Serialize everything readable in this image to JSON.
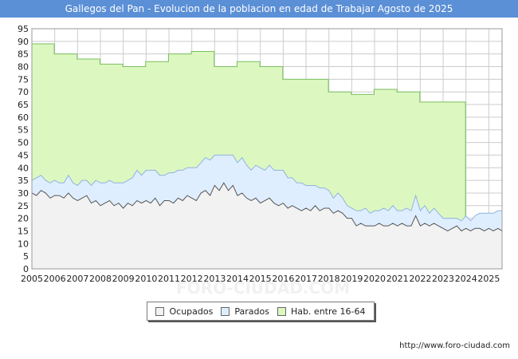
{
  "chart_data": {
    "type": "area",
    "title": "Gallegos del Pan - Evolucion de la poblacion en edad de Trabajar Agosto de 2025",
    "xlabel": "",
    "ylabel": "",
    "xlim": [
      2005,
      2025.58
    ],
    "ylim": [
      0,
      95
    ],
    "yticks": [
      0,
      5,
      10,
      15,
      20,
      25,
      30,
      35,
      40,
      45,
      50,
      55,
      60,
      65,
      70,
      75,
      80,
      85,
      90,
      95
    ],
    "xticks": [
      "2005",
      "2006",
      "2007",
      "2008",
      "2009",
      "2010",
      "2011",
      "2012",
      "2013",
      "2014",
      "2015",
      "2016",
      "2017",
      "2018",
      "2019",
      "2020",
      "2021",
      "2022",
      "2023",
      "2024",
      "2025"
    ],
    "grid": true,
    "legend_position": "bottom-center",
    "colors": {
      "ocupados": "#f2f2f2",
      "parados": "#dfeeff",
      "hab": "#ddf7c0",
      "line_ocupados": "#555555",
      "line_parados": "#8fb3e0",
      "line_hab": "#79bf60"
    },
    "hab_steps": [
      {
        "x": 2005.0,
        "y": 89
      },
      {
        "x": 2005.98,
        "y": 85
      },
      {
        "x": 2006.98,
        "y": 83
      },
      {
        "x": 2007.98,
        "y": 81
      },
      {
        "x": 2008.98,
        "y": 80
      },
      {
        "x": 2009.98,
        "y": 82
      },
      {
        "x": 2010.98,
        "y": 85
      },
      {
        "x": 2011.98,
        "y": 86
      },
      {
        "x": 2012.98,
        "y": 80
      },
      {
        "x": 2013.98,
        "y": 82
      },
      {
        "x": 2014.98,
        "y": 80
      },
      {
        "x": 2015.98,
        "y": 75
      },
      {
        "x": 2016.98,
        "y": 75
      },
      {
        "x": 2017.98,
        "y": 70
      },
      {
        "x": 2018.98,
        "y": 69
      },
      {
        "x": 2019.98,
        "y": 71
      },
      {
        "x": 2020.98,
        "y": 70
      },
      {
        "x": 2021.98,
        "y": 66
      },
      {
        "x": 2022.98,
        "y": 66
      }
    ],
    "hab_end": 2023.98,
    "ocupados": [
      [
        2005.0,
        30
      ],
      [
        2005.2,
        29
      ],
      [
        2005.4,
        31
      ],
      [
        2005.6,
        30
      ],
      [
        2005.8,
        28
      ],
      [
        2006.0,
        29
      ],
      [
        2006.2,
        29
      ],
      [
        2006.4,
        28
      ],
      [
        2006.6,
        30
      ],
      [
        2006.8,
        28
      ],
      [
        2007.0,
        27
      ],
      [
        2007.2,
        28
      ],
      [
        2007.4,
        29
      ],
      [
        2007.6,
        26
      ],
      [
        2007.8,
        27
      ],
      [
        2008.0,
        25
      ],
      [
        2008.2,
        26
      ],
      [
        2008.4,
        27
      ],
      [
        2008.6,
        25
      ],
      [
        2008.8,
        26
      ],
      [
        2009.0,
        24
      ],
      [
        2009.2,
        26
      ],
      [
        2009.4,
        25
      ],
      [
        2009.6,
        27
      ],
      [
        2009.8,
        26
      ],
      [
        2010.0,
        27
      ],
      [
        2010.2,
        26
      ],
      [
        2010.4,
        28
      ],
      [
        2010.6,
        25
      ],
      [
        2010.8,
        27
      ],
      [
        2011.0,
        27
      ],
      [
        2011.2,
        26
      ],
      [
        2011.4,
        28
      ],
      [
        2011.6,
        27
      ],
      [
        2011.8,
        29
      ],
      [
        2012.0,
        28
      ],
      [
        2012.2,
        27
      ],
      [
        2012.4,
        30
      ],
      [
        2012.6,
        31
      ],
      [
        2012.8,
        29
      ],
      [
        2013.0,
        33
      ],
      [
        2013.2,
        31
      ],
      [
        2013.4,
        34
      ],
      [
        2013.6,
        31
      ],
      [
        2013.8,
        33
      ],
      [
        2014.0,
        29
      ],
      [
        2014.2,
        30
      ],
      [
        2014.4,
        28
      ],
      [
        2014.6,
        27
      ],
      [
        2014.8,
        28
      ],
      [
        2015.0,
        26
      ],
      [
        2015.2,
        27
      ],
      [
        2015.4,
        28
      ],
      [
        2015.6,
        26
      ],
      [
        2015.8,
        25
      ],
      [
        2016.0,
        26
      ],
      [
        2016.2,
        24
      ],
      [
        2016.4,
        25
      ],
      [
        2016.6,
        24
      ],
      [
        2016.8,
        23
      ],
      [
        2017.0,
        24
      ],
      [
        2017.2,
        23
      ],
      [
        2017.4,
        25
      ],
      [
        2017.6,
        23
      ],
      [
        2017.8,
        24
      ],
      [
        2018.0,
        24
      ],
      [
        2018.2,
        22
      ],
      [
        2018.4,
        23
      ],
      [
        2018.6,
        22
      ],
      [
        2018.8,
        20
      ],
      [
        2019.0,
        20
      ],
      [
        2019.2,
        17
      ],
      [
        2019.4,
        18
      ],
      [
        2019.6,
        17
      ],
      [
        2019.8,
        17
      ],
      [
        2020.0,
        17
      ],
      [
        2020.2,
        18
      ],
      [
        2020.4,
        17
      ],
      [
        2020.6,
        17
      ],
      [
        2020.8,
        18
      ],
      [
        2021.0,
        17
      ],
      [
        2021.2,
        18
      ],
      [
        2021.4,
        17
      ],
      [
        2021.6,
        17
      ],
      [
        2021.8,
        21
      ],
      [
        2022.0,
        17
      ],
      [
        2022.2,
        18
      ],
      [
        2022.4,
        17
      ],
      [
        2022.6,
        18
      ],
      [
        2022.8,
        17
      ],
      [
        2023.0,
        16
      ],
      [
        2023.2,
        15
      ],
      [
        2023.4,
        16
      ],
      [
        2023.6,
        17
      ],
      [
        2023.8,
        15
      ],
      [
        2024.0,
        16
      ],
      [
        2024.2,
        15
      ],
      [
        2024.4,
        16
      ],
      [
        2024.6,
        16
      ],
      [
        2024.8,
        15
      ],
      [
        2025.0,
        16
      ],
      [
        2025.2,
        15
      ],
      [
        2025.4,
        16
      ],
      [
        2025.58,
        15
      ]
    ],
    "parados": [
      [
        2005.0,
        5
      ],
      [
        2005.2,
        7
      ],
      [
        2005.4,
        6
      ],
      [
        2005.6,
        5
      ],
      [
        2005.8,
        6
      ],
      [
        2006.0,
        6
      ],
      [
        2006.2,
        5
      ],
      [
        2006.4,
        6
      ],
      [
        2006.6,
        7
      ],
      [
        2006.8,
        6
      ],
      [
        2007.0,
        6
      ],
      [
        2007.2,
        7
      ],
      [
        2007.4,
        6
      ],
      [
        2007.6,
        7
      ],
      [
        2007.8,
        8
      ],
      [
        2008.0,
        9
      ],
      [
        2008.2,
        8
      ],
      [
        2008.4,
        8
      ],
      [
        2008.6,
        9
      ],
      [
        2008.8,
        8
      ],
      [
        2009.0,
        10
      ],
      [
        2009.2,
        9
      ],
      [
        2009.4,
        11
      ],
      [
        2009.6,
        12
      ],
      [
        2009.8,
        11
      ],
      [
        2010.0,
        12
      ],
      [
        2010.2,
        13
      ],
      [
        2010.4,
        11
      ],
      [
        2010.6,
        12
      ],
      [
        2010.8,
        10
      ],
      [
        2011.0,
        11
      ],
      [
        2011.2,
        12
      ],
      [
        2011.4,
        11
      ],
      [
        2011.6,
        12
      ],
      [
        2011.8,
        11
      ],
      [
        2012.0,
        12
      ],
      [
        2012.2,
        13
      ],
      [
        2012.4,
        12
      ],
      [
        2012.6,
        13
      ],
      [
        2012.8,
        14
      ],
      [
        2013.0,
        12
      ],
      [
        2013.2,
        14
      ],
      [
        2013.4,
        11
      ],
      [
        2013.6,
        14
      ],
      [
        2013.8,
        12
      ],
      [
        2014.0,
        13
      ],
      [
        2014.2,
        14
      ],
      [
        2014.4,
        13
      ],
      [
        2014.6,
        12
      ],
      [
        2014.8,
        13
      ],
      [
        2015.0,
        14
      ],
      [
        2015.2,
        12
      ],
      [
        2015.4,
        13
      ],
      [
        2015.6,
        13
      ],
      [
        2015.8,
        14
      ],
      [
        2016.0,
        13
      ],
      [
        2016.2,
        12
      ],
      [
        2016.4,
        11
      ],
      [
        2016.6,
        10
      ],
      [
        2016.8,
        11
      ],
      [
        2017.0,
        9
      ],
      [
        2017.2,
        10
      ],
      [
        2017.4,
        8
      ],
      [
        2017.6,
        9
      ],
      [
        2017.8,
        8
      ],
      [
        2018.0,
        7
      ],
      [
        2018.2,
        6
      ],
      [
        2018.4,
        7
      ],
      [
        2018.6,
        6
      ],
      [
        2018.8,
        5
      ],
      [
        2019.0,
        4
      ],
      [
        2019.2,
        6
      ],
      [
        2019.4,
        5
      ],
      [
        2019.6,
        7
      ],
      [
        2019.8,
        5
      ],
      [
        2020.0,
        6
      ],
      [
        2020.2,
        5
      ],
      [
        2020.4,
        7
      ],
      [
        2020.6,
        6
      ],
      [
        2020.8,
        7
      ],
      [
        2021.0,
        6
      ],
      [
        2021.2,
        5
      ],
      [
        2021.4,
        7
      ],
      [
        2021.6,
        6
      ],
      [
        2021.8,
        8
      ],
      [
        2022.0,
        6
      ],
      [
        2022.2,
        7
      ],
      [
        2022.4,
        5
      ],
      [
        2022.6,
        6
      ],
      [
        2022.8,
        5
      ],
      [
        2023.0,
        4
      ],
      [
        2023.2,
        5
      ],
      [
        2023.4,
        4
      ],
      [
        2023.6,
        3
      ],
      [
        2023.8,
        4
      ],
      [
        2024.0,
        5
      ],
      [
        2024.2,
        4
      ],
      [
        2024.4,
        5
      ],
      [
        2024.6,
        6
      ],
      [
        2024.8,
        7
      ],
      [
        2025.0,
        6
      ],
      [
        2025.2,
        7
      ],
      [
        2025.4,
        7
      ],
      [
        2025.58,
        8
      ]
    ],
    "legend": [
      {
        "key": "ocupados",
        "label": "Ocupados"
      },
      {
        "key": "parados",
        "label": "Parados"
      },
      {
        "key": "hab",
        "label": "Hab. entre 16-64"
      }
    ],
    "source": "http://www.foro-ciudad.com",
    "watermark": "FORO-CIUDAD.COM"
  }
}
